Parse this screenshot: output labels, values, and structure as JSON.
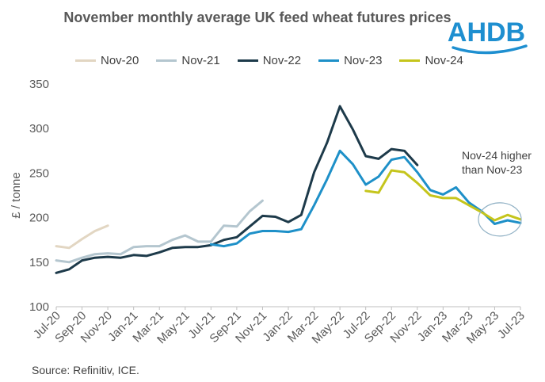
{
  "title": "November monthly average UK feed wheat futures prices",
  "logo_text": "AHDB",
  "source": "Source: Refinitiv, ICE.",
  "colors": {
    "Nov-20": "#e2d6c2",
    "Nov-21": "#b4c6cf",
    "Nov-22": "#1d3a4a",
    "Nov-23": "#1e90c8",
    "Nov-24": "#c5c51c",
    "logo": "#1e8fd0",
    "axis": "#bfbfbf",
    "circle": "#8fb0c4"
  },
  "chart_data": {
    "type": "line",
    "title": "November monthly average UK feed wheat futures prices",
    "xlabel": "",
    "ylabel": "£ / tonne",
    "ylim": [
      100,
      350
    ],
    "yticks": [
      100,
      150,
      200,
      250,
      300,
      350
    ],
    "x_tick_labels": [
      "Jul-20",
      "Sep-20",
      "Nov-20",
      "Jan-21",
      "Mar-21",
      "May-21",
      "Jul-21",
      "Sep-21",
      "Nov-21",
      "Jan-22",
      "Mar-22",
      "May-22",
      "Jul-22",
      "Sep-22",
      "Nov-22",
      "Jan-23",
      "Mar-23",
      "May-23",
      "Jul-23"
    ],
    "n_months": 37,
    "legend_position": "top",
    "series": [
      {
        "name": "Nov-20",
        "start": 0,
        "values": [
          168,
          166,
          176,
          185,
          191
        ]
      },
      {
        "name": "Nov-21",
        "start": 0,
        "values": [
          152,
          150,
          155,
          159,
          160,
          159,
          167,
          168,
          168,
          175,
          180,
          173,
          173,
          191,
          190,
          207,
          219
        ]
      },
      {
        "name": "Nov-22",
        "start": 0,
        "values": [
          138,
          142,
          152,
          155,
          156,
          155,
          158,
          157,
          161,
          166,
          167,
          167,
          169,
          175,
          178,
          190,
          202,
          201,
          195,
          203,
          251,
          284,
          325,
          299,
          269,
          266,
          277,
          275,
          259
        ]
      },
      {
        "name": "Nov-23",
        "start": 12,
        "values": [
          170,
          168,
          171,
          182,
          185,
          185,
          184,
          187,
          214,
          243,
          275,
          260,
          237,
          246,
          265,
          268,
          251,
          231,
          226,
          234,
          217,
          207,
          193,
          197,
          194
        ]
      },
      {
        "name": "Nov-24",
        "start": 24,
        "values": [
          230,
          228,
          253,
          251,
          239,
          225,
          222,
          222,
          214,
          206,
          197,
          203,
          198
        ]
      }
    ],
    "annotations": [
      {
        "text_lines": [
          "Nov-24 higher",
          "than Nov-23"
        ]
      }
    ]
  }
}
